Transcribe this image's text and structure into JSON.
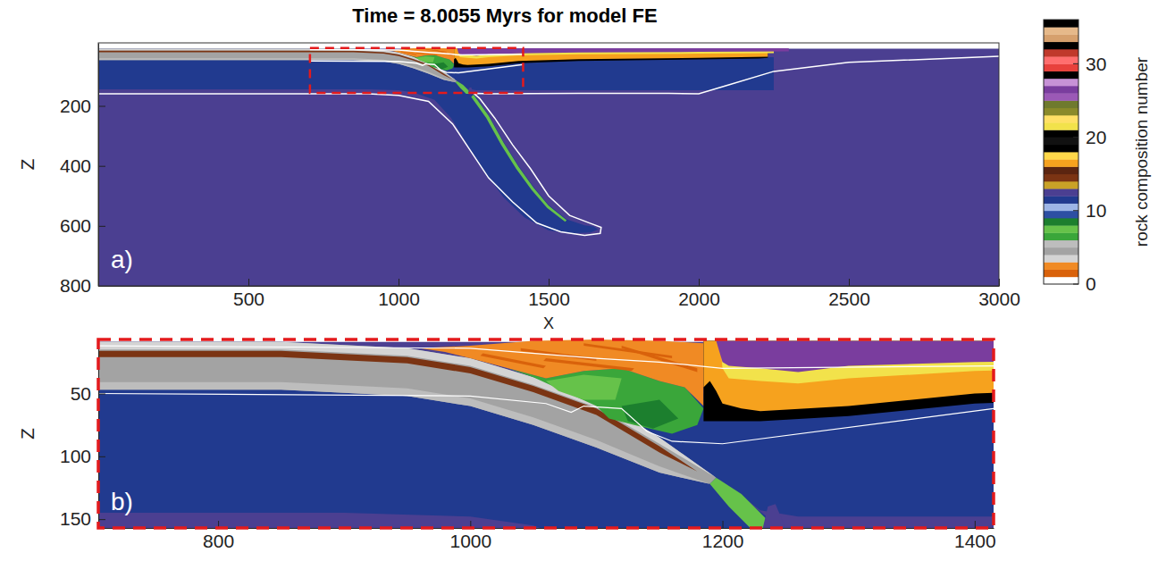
{
  "chart_data": {
    "type": "field",
    "title": "Time = 8.0055 Myrs for model FE",
    "panels": [
      {
        "label": "a)",
        "xlim": [
          0,
          3000
        ],
        "ylim": [
          -10,
          800
        ],
        "xticks": [
          500,
          1000,
          1500,
          2000,
          2500,
          3000
        ],
        "yticks": [
          200,
          400,
          600,
          800
        ],
        "xlabel": "X",
        "ylabel": "Z"
      },
      {
        "label": "b)",
        "xlim": [
          705,
          1415
        ],
        "ylim": [
          7,
          157
        ],
        "xticks": [
          800,
          1000,
          1200,
          1400
        ],
        "yticks": [
          50,
          100,
          150
        ],
        "ylabel": "Z"
      }
    ],
    "colorbar": {
      "label": "rock composition number",
      "range": [
        0,
        36
      ],
      "ticks": [
        0,
        10,
        20,
        30
      ],
      "colors": [
        "#ffffff",
        "#d9620b",
        "#f08a24",
        "#d4d4d4",
        "#a3a3a3",
        "#bdbdbd",
        "#3aa63a",
        "#66c24a",
        "#1c7f2e",
        "#2d4fa3",
        "#9db5e6",
        "#213a8f",
        "#4b3f91",
        "#c9a227",
        "#7b3413",
        "#5b2510",
        "#f6a21e",
        "#ffd84a",
        "#000000",
        "#111111",
        "#000000",
        "#f2e24b",
        "#ffe066",
        "#8a8a2a",
        "#6f7a2e",
        "#9b59b6",
        "#7a3d9e",
        "#c792d6",
        "#000000",
        "#e8413c",
        "#ff6e6e",
        "#c0392b",
        "#000000",
        "#d6a06d",
        "#e6b98a",
        "#000000"
      ]
    },
    "regions": [
      {
        "composition": 0,
        "polygon": [
          [
            0,
            -10
          ],
          [
            3000,
            -10
          ],
          [
            3000,
            9
          ],
          [
            0,
            9
          ]
        ]
      },
      {
        "composition": 12,
        "polygon": [
          [
            0,
            9
          ],
          [
            3000,
            9
          ],
          [
            3000,
            800
          ],
          [
            0,
            800
          ]
        ]
      },
      {
        "composition": 11,
        "polygon": [
          [
            1100,
            55
          ],
          [
            1185,
            50
          ],
          [
            1400,
            50
          ],
          [
            1800,
            45
          ],
          [
            2230,
            38
          ],
          [
            2250,
            38
          ],
          [
            2250,
            148
          ],
          [
            1260,
            148
          ],
          [
            1230,
            143
          ],
          [
            1200,
            120
          ],
          [
            1150,
            88
          ]
        ]
      },
      {
        "composition": 11,
        "polygon": [
          [
            0,
            9
          ],
          [
            850,
            9
          ],
          [
            950,
            14
          ],
          [
            1000,
            22
          ],
          [
            1050,
            37
          ],
          [
            1100,
            55
          ],
          [
            1150,
            85
          ],
          [
            1200,
            120
          ],
          [
            1250,
            160
          ],
          [
            1300,
            230
          ],
          [
            1350,
            320
          ],
          [
            1400,
            400
          ],
          [
            1450,
            470
          ],
          [
            1500,
            530
          ],
          [
            1560,
            578
          ],
          [
            1620,
            598
          ],
          [
            1650,
            602
          ],
          [
            1665,
            612
          ],
          [
            1640,
            622
          ],
          [
            1580,
            625
          ],
          [
            1500,
            615
          ],
          [
            1420,
            572
          ],
          [
            1350,
            505
          ],
          [
            1290,
            425
          ],
          [
            1230,
            330
          ],
          [
            1175,
            240
          ],
          [
            1120,
            180
          ],
          [
            1050,
            155
          ],
          [
            1000,
            148
          ],
          [
            900,
            145
          ],
          [
            0,
            145
          ]
        ]
      },
      {
        "composition": 7,
        "polygon": [
          [
            1250,
            163
          ],
          [
            1300,
            233
          ],
          [
            1350,
            323
          ],
          [
            1400,
            403
          ],
          [
            1450,
            473
          ],
          [
            1500,
            533
          ],
          [
            1560,
            581
          ],
          [
            1555,
            586
          ],
          [
            1495,
            540
          ],
          [
            1443,
            480
          ],
          [
            1392,
            410
          ],
          [
            1342,
            330
          ],
          [
            1292,
            240
          ],
          [
            1242,
            170
          ]
        ]
      },
      {
        "composition": 4,
        "polygon": [
          [
            0,
            9
          ],
          [
            850,
            9
          ],
          [
            950,
            14
          ],
          [
            1000,
            22
          ],
          [
            1050,
            37
          ],
          [
            1100,
            55
          ],
          [
            1150,
            85
          ],
          [
            1195,
            117
          ],
          [
            1190,
            122
          ],
          [
            1150,
            113
          ],
          [
            1100,
            93
          ],
          [
            1050,
            75
          ],
          [
            1000,
            60
          ],
          [
            950,
            52
          ],
          [
            850,
            47
          ],
          [
            0,
            47
          ]
        ]
      },
      {
        "composition": 3,
        "polygon": [
          [
            0,
            9
          ],
          [
            850,
            9
          ],
          [
            950,
            14
          ],
          [
            1000,
            22
          ],
          [
            1050,
            37
          ],
          [
            1100,
            55
          ],
          [
            1150,
            85
          ],
          [
            1195,
            117
          ],
          [
            1150,
            90
          ],
          [
            1100,
            61
          ],
          [
            1050,
            43
          ],
          [
            1000,
            28
          ],
          [
            950,
            20
          ],
          [
            850,
            15
          ],
          [
            0,
            15
          ]
        ]
      },
      {
        "composition": 14,
        "polygon": [
          [
            0,
            16
          ],
          [
            850,
            16
          ],
          [
            950,
            21
          ],
          [
            1000,
            29
          ],
          [
            1050,
            44
          ],
          [
            1100,
            62
          ],
          [
            1150,
            92
          ],
          [
            1180,
            112
          ],
          [
            1150,
            97
          ],
          [
            1100,
            67
          ],
          [
            1050,
            49
          ],
          [
            1000,
            34
          ],
          [
            950,
            26
          ],
          [
            850,
            21
          ],
          [
            0,
            21
          ]
        ]
      },
      {
        "composition": 5,
        "polygon": [
          [
            0,
            41
          ],
          [
            850,
            41
          ],
          [
            950,
            46
          ],
          [
            1000,
            54
          ],
          [
            1050,
            69
          ],
          [
            1100,
            87
          ],
          [
            1150,
            108
          ],
          [
            1190,
            122
          ],
          [
            1150,
            113
          ],
          [
            1100,
            93
          ],
          [
            1050,
            75
          ],
          [
            1000,
            60
          ],
          [
            950,
            52
          ],
          [
            850,
            47
          ],
          [
            0,
            47
          ]
        ]
      },
      {
        "composition": 6,
        "polygon": [
          [
            1030,
            30
          ],
          [
            1060,
            38
          ],
          [
            1090,
            32
          ],
          [
            1120,
            30
          ],
          [
            1150,
            40
          ],
          [
            1170,
            45
          ],
          [
            1185,
            62
          ],
          [
            1180,
            75
          ],
          [
            1160,
            82
          ],
          [
            1130,
            75
          ],
          [
            1110,
            70
          ],
          [
            1100,
            60
          ],
          [
            1050,
            37
          ]
        ]
      },
      {
        "composition": 7,
        "polygon": [
          [
            1060,
            40
          ],
          [
            1090,
            35
          ],
          [
            1120,
            38
          ],
          [
            1115,
            55
          ],
          [
            1090,
            55
          ],
          [
            1070,
            48
          ]
        ]
      },
      {
        "composition": 8,
        "polygon": [
          [
            1120,
            60
          ],
          [
            1150,
            55
          ],
          [
            1165,
            70
          ],
          [
            1145,
            78
          ],
          [
            1125,
            72
          ]
        ]
      },
      {
        "composition": 2,
        "polygon": [
          [
            960,
            14
          ],
          [
            1000,
            12
          ],
          [
            1050,
            8
          ],
          [
            1100,
            7
          ],
          [
            1150,
            8
          ],
          [
            1185,
            10
          ],
          [
            1185,
            60
          ],
          [
            1170,
            45
          ],
          [
            1150,
            40
          ],
          [
            1120,
            30
          ],
          [
            1090,
            32
          ],
          [
            1060,
            38
          ],
          [
            1030,
            30
          ],
          [
            1000,
            22
          ],
          [
            980,
            17
          ]
        ]
      },
      {
        "composition": 1,
        "polygon": [
          [
            1040,
            14
          ],
          [
            1100,
            22
          ],
          [
            1100,
            24
          ],
          [
            1040,
            16
          ]
        ]
      },
      {
        "composition": 1,
        "polygon": [
          [
            1060,
            22
          ],
          [
            1130,
            30
          ],
          [
            1128,
            32
          ],
          [
            1058,
            24
          ]
        ]
      },
      {
        "composition": 1,
        "polygon": [
          [
            1090,
            10
          ],
          [
            1160,
            20
          ],
          [
            1160,
            22
          ],
          [
            1090,
            12
          ]
        ]
      },
      {
        "composition": 1,
        "polygon": [
          [
            1120,
            12
          ],
          [
            1180,
            30
          ],
          [
            1180,
            33
          ],
          [
            1120,
            14
          ]
        ]
      },
      {
        "composition": 1,
        "polygon": [
          [
            1010,
            18
          ],
          [
            1060,
            28
          ],
          [
            1058,
            30
          ],
          [
            1008,
            20
          ]
        ]
      },
      {
        "composition": 7,
        "polygon": [
          [
            1195,
            117
          ],
          [
            1215,
            130
          ],
          [
            1235,
            150
          ],
          [
            1240,
            160
          ],
          [
            1225,
            160
          ],
          [
            1205,
            140
          ],
          [
            1190,
            122
          ]
        ]
      },
      {
        "composition": 18,
        "polygon": [
          [
            1185,
            8
          ],
          [
            2230,
            8
          ],
          [
            2230,
            40
          ],
          [
            2200,
            42
          ],
          [
            2000,
            45
          ],
          [
            1600,
            50
          ],
          [
            1400,
            58
          ],
          [
            1300,
            68
          ],
          [
            1230,
            72
          ],
          [
            1185,
            72
          ]
        ]
      },
      {
        "composition": 16,
        "polygon": [
          [
            1185,
            8
          ],
          [
            2230,
            8
          ],
          [
            2230,
            36
          ],
          [
            2000,
            40
          ],
          [
            1600,
            44
          ],
          [
            1400,
            50
          ],
          [
            1300,
            60
          ],
          [
            1230,
            64
          ],
          [
            1215,
            62
          ],
          [
            1200,
            58
          ],
          [
            1195,
            48
          ],
          [
            1190,
            40
          ],
          [
            1185,
            45
          ]
        ]
      },
      {
        "composition": 21,
        "polygon": [
          [
            1198,
            8
          ],
          [
            2250,
            8
          ],
          [
            2250,
            24
          ],
          [
            2000,
            26
          ],
          [
            1600,
            28
          ],
          [
            1400,
            32
          ],
          [
            1300,
            38
          ],
          [
            1260,
            42
          ],
          [
            1230,
            40
          ],
          [
            1205,
            38
          ],
          [
            1200,
            30
          ]
        ]
      },
      {
        "composition": 26,
        "polygon": [
          [
            1195,
            8
          ],
          [
            2300,
            8
          ],
          [
            2300,
            18
          ],
          [
            2000,
            20
          ],
          [
            1600,
            22
          ],
          [
            1400,
            25
          ],
          [
            1300,
            28
          ],
          [
            1260,
            33
          ],
          [
            1230,
            30
          ],
          [
            1205,
            28
          ],
          [
            1200,
            25
          ]
        ]
      },
      {
        "composition": 12,
        "polygon": [
          [
            1232,
            157
          ],
          [
            1236,
            140
          ],
          [
            1242,
            138
          ],
          [
            1250,
            157
          ]
        ]
      }
    ],
    "contours": [
      [
        [
          0,
          160
        ],
        [
          900,
          160
        ],
        [
          1000,
          165
        ],
        [
          1100,
          185
        ],
        [
          1180,
          260
        ],
        [
          1240,
          350
        ],
        [
          1300,
          440
        ],
        [
          1380,
          520
        ],
        [
          1460,
          590
        ],
        [
          1540,
          620
        ],
        [
          1620,
          632
        ],
        [
          1672,
          625
        ],
        [
          1675,
          605
        ],
        [
          1640,
          592
        ],
        [
          1570,
          565
        ],
        [
          1500,
          500
        ],
        [
          1440,
          410
        ],
        [
          1380,
          330
        ],
        [
          1320,
          240
        ],
        [
          1270,
          175
        ],
        [
          1250,
          158
        ],
        [
          1300,
          160
        ],
        [
          1600,
          158
        ],
        [
          1900,
          158
        ],
        [
          2000,
          160
        ],
        [
          2100,
          130
        ],
        [
          2250,
          85
        ],
        [
          2500,
          55
        ],
        [
          3000,
          35
        ]
      ],
      [
        [
          705,
          12
        ],
        [
          1000,
          14
        ],
        [
          1100,
          22
        ],
        [
          1150,
          25
        ],
        [
          1200,
          30
        ],
        [
          1415,
          28
        ]
      ],
      [
        [
          705,
          50
        ],
        [
          1000,
          52
        ],
        [
          1060,
          58
        ],
        [
          1080,
          65
        ],
        [
          1090,
          60
        ],
        [
          1120,
          62
        ],
        [
          1140,
          80
        ],
        [
          1160,
          88
        ],
        [
          1200,
          90
        ],
        [
          1415,
          62
        ]
      ]
    ]
  }
}
